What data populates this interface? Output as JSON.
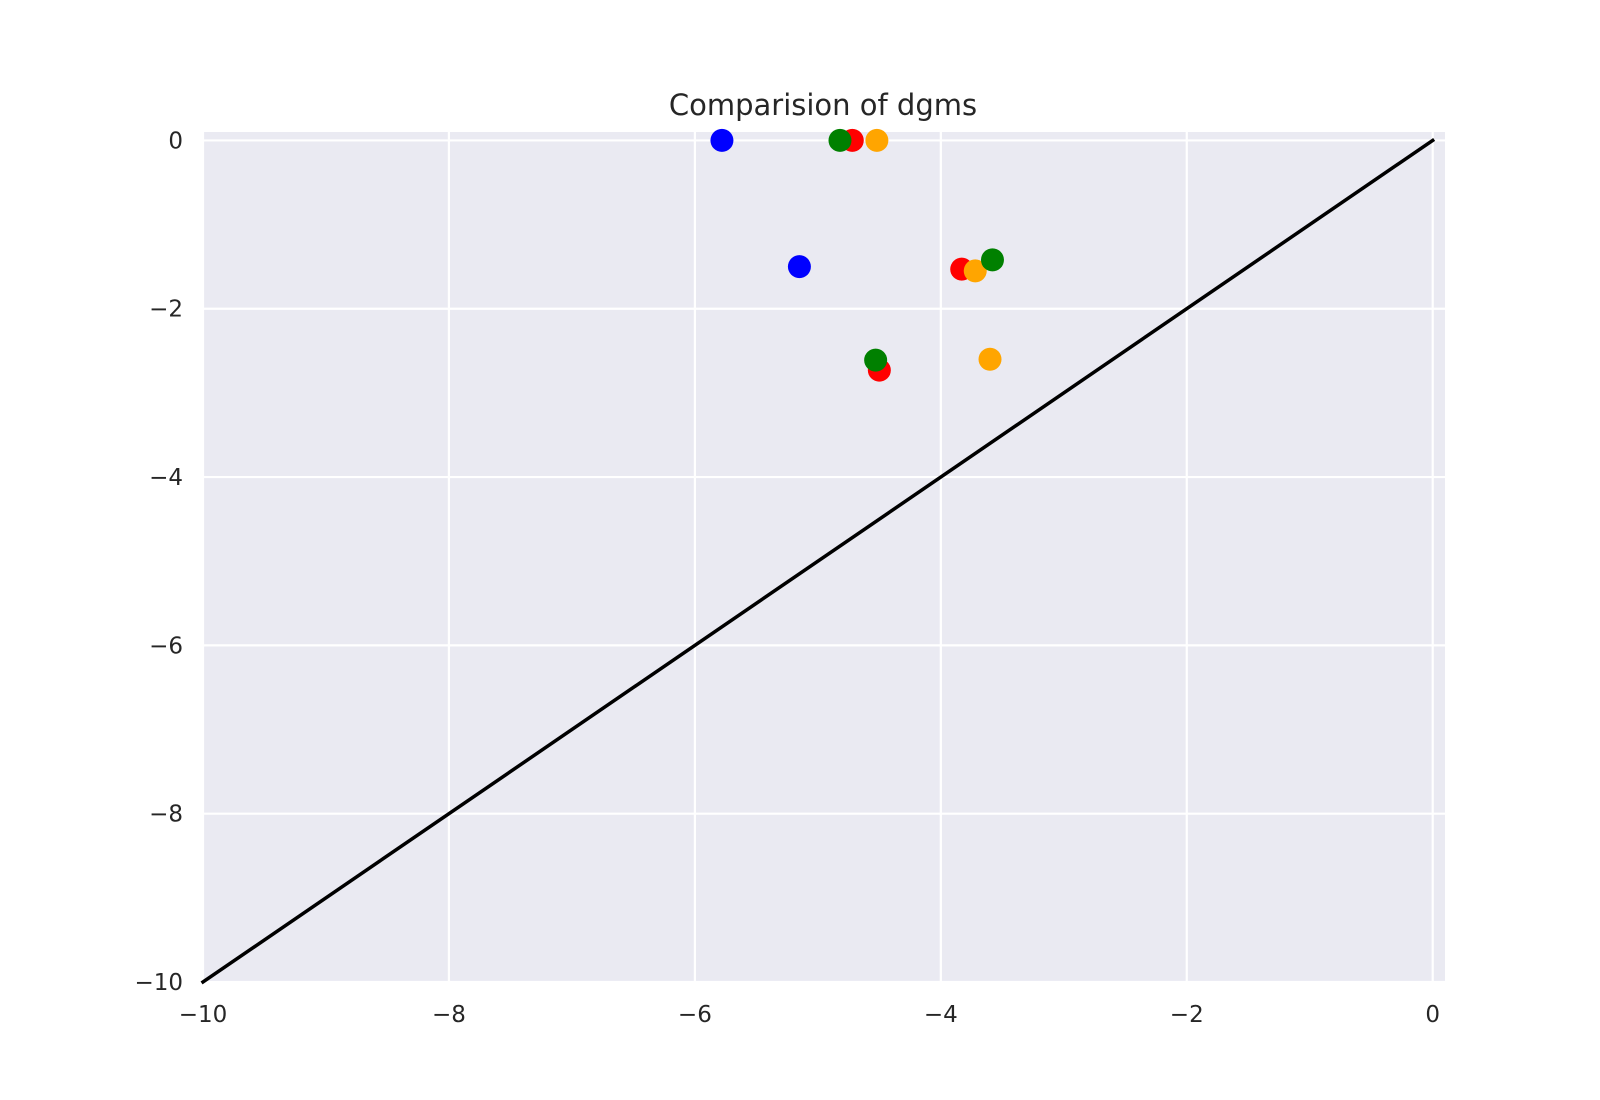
{
  "chart_data": {
    "type": "scatter",
    "title": "Comparision of dgms",
    "xlabel": "",
    "ylabel": "",
    "xlim": [
      -10,
      0.1
    ],
    "ylim": [
      -10,
      0.1
    ],
    "grid": true,
    "background": "#eaeaf2",
    "grid_color": "#ffffff",
    "x_ticks": [
      -10,
      -8,
      -6,
      -4,
      -2,
      0
    ],
    "x_tick_labels": [
      "−10",
      "−8",
      "−6",
      "−4",
      "−2",
      "0"
    ],
    "y_ticks": [
      -10,
      -8,
      -6,
      -4,
      -2,
      0
    ],
    "y_tick_labels": [
      "−10",
      "−8",
      "−6",
      "−4",
      "−2",
      "0"
    ],
    "series": [
      {
        "color": "#0000ff",
        "points": [
          [
            -5.78,
            0.0
          ],
          [
            -5.15,
            -1.5
          ]
        ]
      },
      {
        "color": "#ff0000",
        "points": [
          [
            -4.72,
            0.0
          ],
          [
            -3.83,
            -1.53
          ],
          [
            -4.5,
            -2.73
          ]
        ]
      },
      {
        "color": "#ffa500",
        "points": [
          [
            -4.52,
            0.0
          ],
          [
            -3.72,
            -1.55
          ],
          [
            -3.6,
            -2.6
          ]
        ]
      },
      {
        "color": "#008000",
        "points": [
          [
            -4.82,
            0.0
          ],
          [
            -3.58,
            -1.42
          ],
          [
            -4.53,
            -2.61
          ]
        ]
      }
    ],
    "diagonal": {
      "from": [
        -10,
        -10
      ],
      "to": [
        0,
        0
      ],
      "color": "#000000"
    }
  }
}
